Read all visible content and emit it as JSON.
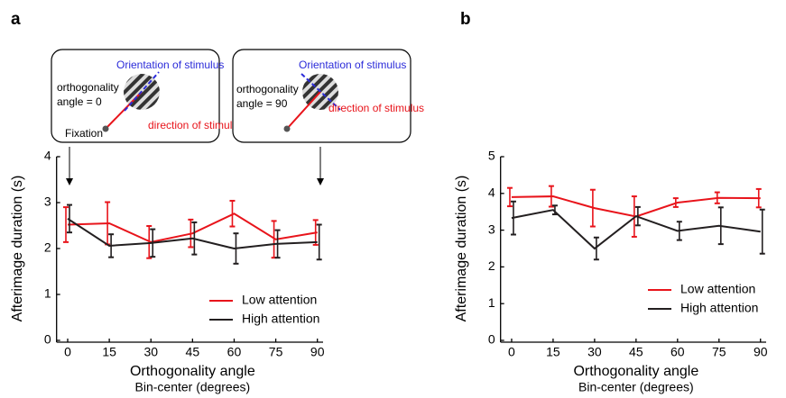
{
  "chart_data": [
    {
      "type": "line",
      "panel": "a",
      "xlabel": "Orthogonality angle",
      "xsublabel": "Bin-center (degrees)",
      "ylabel": "Afterimage duration (s)",
      "x": [
        0,
        15,
        30,
        45,
        60,
        75,
        90
      ],
      "xlim": [
        -4,
        94
      ],
      "xticks": [
        0,
        15,
        30,
        45,
        60,
        75,
        90
      ],
      "ylim": [
        0,
        4
      ],
      "yticks": [
        0,
        1,
        2,
        3,
        4
      ],
      "legend": "lower right",
      "series": [
        {
          "name": "Low attention",
          "color": "#e8141b",
          "values": [
            2.52,
            2.55,
            2.14,
            2.33,
            2.76,
            2.2,
            2.35
          ],
          "errors": [
            0.38,
            0.46,
            0.35,
            0.3,
            0.28,
            0.4,
            0.27
          ]
        },
        {
          "name": "High attention",
          "color": "#231f20",
          "values": [
            2.65,
            2.06,
            2.12,
            2.22,
            2.0,
            2.1,
            2.14
          ],
          "errors": [
            0.3,
            0.25,
            0.3,
            0.35,
            0.33,
            0.3,
            0.38
          ]
        }
      ]
    },
    {
      "type": "line",
      "panel": "b",
      "xlabel": "Orthogonality angle",
      "xsublabel": "Bin-center (degrees)",
      "ylabel": "Afterimage duration (s)",
      "x": [
        0,
        15,
        30,
        45,
        60,
        75,
        90
      ],
      "xlim": [
        -4,
        94
      ],
      "xticks": [
        0,
        15,
        30,
        45,
        60,
        75,
        90
      ],
      "ylim": [
        0,
        5
      ],
      "yticks": [
        0,
        1,
        2,
        3,
        4,
        5
      ],
      "legend": "lower right",
      "series": [
        {
          "name": "Low attention",
          "color": "#e8141b",
          "values": [
            3.9,
            3.92,
            3.6,
            3.37,
            3.75,
            3.88,
            3.87
          ],
          "errors": [
            0.25,
            0.28,
            0.5,
            0.55,
            0.12,
            0.15,
            0.25
          ]
        },
        {
          "name": "High attention",
          "color": "#231f20",
          "values": [
            3.33,
            3.55,
            2.5,
            3.38,
            2.98,
            3.12,
            2.96
          ],
          "errors": [
            0.45,
            0.12,
            0.3,
            0.25,
            0.25,
            0.5,
            0.6
          ]
        }
      ]
    }
  ],
  "inset": {
    "boxes": [
      {
        "orientation": "Orientation of stimulus",
        "angle_lines": [
          "orthogonality",
          "angle = 0"
        ],
        "direction": "direction of stimulus",
        "fixation": "Fixation"
      },
      {
        "orientation": "Orientation of stimulus",
        "angle_lines": [
          "orthogonality",
          "angle = 90"
        ],
        "direction": "direction of stimulus"
      }
    ]
  }
}
